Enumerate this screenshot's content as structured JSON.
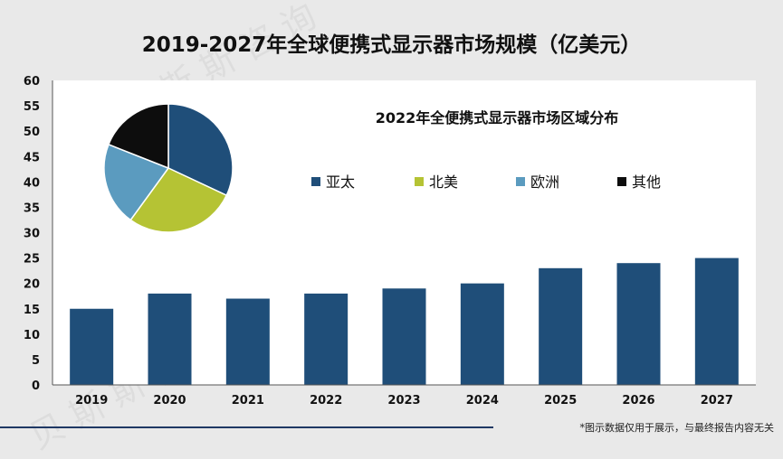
{
  "title": "2019-2027年全球便携式显示器市场规模（亿美元）",
  "footnote": "*图示数据仅用于展示，与最终报告内容无关",
  "watermark_text": "贝 斯 斯 咨 询",
  "chart_data": [
    {
      "type": "bar",
      "categories": [
        "2019",
        "2020",
        "2021",
        "2022",
        "2023",
        "2024",
        "2025",
        "2026",
        "2027"
      ],
      "values": [
        15,
        18,
        17,
        18,
        19,
        20,
        23,
        24,
        25
      ],
      "ylim": [
        0,
        60
      ],
      "yticks": [
        0,
        5,
        10,
        15,
        20,
        25,
        30,
        35,
        40,
        45,
        50,
        55,
        60
      ],
      "bar_color": "#1f4e79",
      "grid": false
    },
    {
      "type": "pie",
      "title": "2022年全便携式显示器市场区域分布",
      "labels": [
        "亚太",
        "北美",
        "欧洲",
        "其他"
      ],
      "values": [
        32,
        28,
        21,
        19
      ],
      "colors": [
        "#1f4e79",
        "#b5c334",
        "#5b9bbf",
        "#0d0d0d"
      ],
      "legend": "right"
    }
  ]
}
